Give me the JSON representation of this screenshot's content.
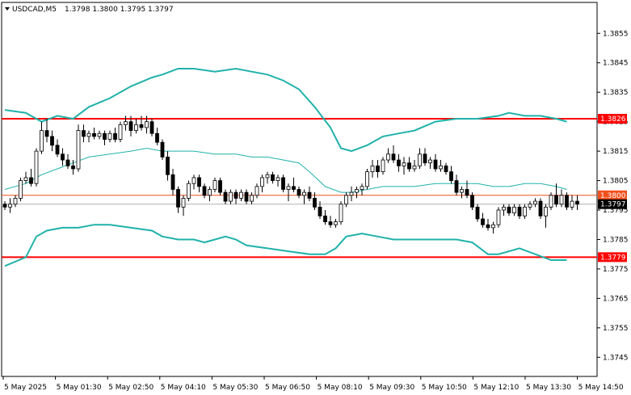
{
  "header": {
    "symbol": "USDCAD,M5",
    "ohlc": "1.3798 1.3800 1.3795 1.3797"
  },
  "chart_data": {
    "type": "candlestick",
    "symbol": "USDCAD",
    "timeframe": "M5",
    "ylim": [
      1.37385,
      1.38655
    ],
    "y_ticks": [
      "1.3855",
      "1.3845",
      "1.3835",
      "1.3825",
      "1.3815",
      "1.3805",
      "1.3795",
      "1.3785",
      "1.3775",
      "1.3765",
      "1.3755",
      "1.3745"
    ],
    "x_ticks": [
      "5 May 2025",
      "5 May 01:30",
      "5 May 02:50",
      "5 May 04:10",
      "5 May 05:30",
      "5 May 06:50",
      "5 May 08:10",
      "5 May 09:30",
      "5 May 10:50",
      "5 May 12:10",
      "5 May 13:30",
      "5 May 14:50"
    ],
    "candles": [
      [
        1.3797,
        1.3798,
        1.3795,
        1.3796
      ],
      [
        1.3796,
        1.3799,
        1.3794,
        1.3797
      ],
      [
        1.3797,
        1.38,
        1.3796,
        1.3799
      ],
      [
        1.3799,
        1.3806,
        1.3798,
        1.3805
      ],
      [
        1.3805,
        1.3808,
        1.3804,
        1.3806
      ],
      [
        1.3806,
        1.3809,
        1.3803,
        1.3804
      ],
      [
        1.3804,
        1.3816,
        1.3803,
        1.3815
      ],
      [
        1.3815,
        1.3825,
        1.3814,
        1.3822
      ],
      [
        1.3822,
        1.3826,
        1.3818,
        1.382
      ],
      [
        1.382,
        1.3822,
        1.3815,
        1.3817
      ],
      [
        1.3817,
        1.3819,
        1.3813,
        1.3814
      ],
      [
        1.3814,
        1.3816,
        1.381,
        1.3812
      ],
      [
        1.3812,
        1.3814,
        1.3809,
        1.381
      ],
      [
        1.381,
        1.3812,
        1.3807,
        1.3809
      ],
      [
        1.3809,
        1.3824,
        1.3808,
        1.3822
      ],
      [
        1.3822,
        1.3824,
        1.3818,
        1.382
      ],
      [
        1.382,
        1.3822,
        1.3818,
        1.3821
      ],
      [
        1.3821,
        1.3823,
        1.3819,
        1.382
      ],
      [
        1.382,
        1.3822,
        1.3819,
        1.3821
      ],
      [
        1.3821,
        1.3822,
        1.3817,
        1.3819
      ],
      [
        1.3819,
        1.3822,
        1.3818,
        1.3821
      ],
      [
        1.3821,
        1.3823,
        1.3818,
        1.3819
      ],
      [
        1.3819,
        1.3825,
        1.3818,
        1.3824
      ],
      [
        1.3824,
        1.3827,
        1.3822,
        1.3825
      ],
      [
        1.3825,
        1.3827,
        1.382,
        1.3822
      ],
      [
        1.3822,
        1.3826,
        1.3821,
        1.3824
      ],
      [
        1.3824,
        1.3827,
        1.3822,
        1.3823
      ],
      [
        1.3823,
        1.3827,
        1.3821,
        1.3825
      ],
      [
        1.3825,
        1.3826,
        1.382,
        1.3821
      ],
      [
        1.3821,
        1.3823,
        1.3817,
        1.3818
      ],
      [
        1.3818,
        1.3819,
        1.3812,
        1.3813
      ],
      [
        1.3813,
        1.3815,
        1.3805,
        1.3807
      ],
      [
        1.3807,
        1.3809,
        1.38,
        1.3802
      ],
      [
        1.3802,
        1.3803,
        1.3794,
        1.3796
      ],
      [
        1.3796,
        1.38,
        1.3793,
        1.3799
      ],
      [
        1.3799,
        1.3805,
        1.3798,
        1.3804
      ],
      [
        1.3804,
        1.3807,
        1.3802,
        1.3806
      ],
      [
        1.3806,
        1.3807,
        1.3801,
        1.3803
      ],
      [
        1.3803,
        1.3804,
        1.3799,
        1.38
      ],
      [
        1.38,
        1.3803,
        1.3798,
        1.3802
      ],
      [
        1.3802,
        1.3806,
        1.3801,
        1.3805
      ],
      [
        1.3805,
        1.3806,
        1.38,
        1.3801
      ],
      [
        1.3801,
        1.3802,
        1.3797,
        1.3798
      ],
      [
        1.3798,
        1.3802,
        1.3797,
        1.3801
      ],
      [
        1.3801,
        1.3802,
        1.3797,
        1.3799
      ],
      [
        1.3799,
        1.3802,
        1.3798,
        1.3801
      ],
      [
        1.3801,
        1.3802,
        1.3797,
        1.3798
      ],
      [
        1.3798,
        1.3801,
        1.3797,
        1.38
      ],
      [
        1.38,
        1.3804,
        1.3799,
        1.3803
      ],
      [
        1.3803,
        1.3807,
        1.3801,
        1.3806
      ],
      [
        1.3806,
        1.3808,
        1.3804,
        1.3807
      ],
      [
        1.3807,
        1.3808,
        1.3804,
        1.3805
      ],
      [
        1.3805,
        1.3807,
        1.3803,
        1.3806
      ],
      [
        1.3806,
        1.3807,
        1.3801,
        1.3802
      ],
      [
        1.3802,
        1.3804,
        1.3798,
        1.3803
      ],
      [
        1.3803,
        1.3806,
        1.3801,
        1.3802
      ],
      [
        1.3802,
        1.3803,
        1.3799,
        1.38
      ],
      [
        1.38,
        1.3802,
        1.3797,
        1.3801
      ],
      [
        1.3801,
        1.3803,
        1.3798,
        1.3799
      ],
      [
        1.3799,
        1.3801,
        1.3795,
        1.3796
      ],
      [
        1.3796,
        1.3798,
        1.3792,
        1.3793
      ],
      [
        1.3793,
        1.3795,
        1.379,
        1.3791
      ],
      [
        1.3791,
        1.3793,
        1.3789,
        1.379
      ],
      [
        1.379,
        1.3792,
        1.3789,
        1.3791
      ],
      [
        1.3791,
        1.3798,
        1.379,
        1.3797
      ],
      [
        1.3797,
        1.3801,
        1.3796,
        1.38
      ],
      [
        1.38,
        1.3803,
        1.3798,
        1.3801
      ],
      [
        1.3801,
        1.3803,
        1.3799,
        1.3802
      ],
      [
        1.3802,
        1.3804,
        1.38,
        1.3803
      ],
      [
        1.3803,
        1.3809,
        1.3802,
        1.3808
      ],
      [
        1.3808,
        1.3812,
        1.3806,
        1.381
      ],
      [
        1.381,
        1.3812,
        1.3806,
        1.3808
      ],
      [
        1.3808,
        1.3813,
        1.3807,
        1.3812
      ],
      [
        1.3812,
        1.3816,
        1.3811,
        1.3814
      ],
      [
        1.3814,
        1.3817,
        1.3811,
        1.3812
      ],
      [
        1.3812,
        1.3814,
        1.3808,
        1.381
      ],
      [
        1.381,
        1.3813,
        1.3807,
        1.3811
      ],
      [
        1.3811,
        1.3813,
        1.3808,
        1.3809
      ],
      [
        1.3809,
        1.3812,
        1.3808,
        1.381
      ],
      [
        1.381,
        1.3816,
        1.3809,
        1.3814
      ],
      [
        1.3814,
        1.3816,
        1.381,
        1.3811
      ],
      [
        1.3811,
        1.3813,
        1.3809,
        1.3812
      ],
      [
        1.3812,
        1.3814,
        1.3808,
        1.3809
      ],
      [
        1.3809,
        1.3812,
        1.3808,
        1.381
      ],
      [
        1.381,
        1.3811,
        1.3807,
        1.3808
      ],
      [
        1.3808,
        1.381,
        1.3804,
        1.3805
      ],
      [
        1.3805,
        1.3807,
        1.38,
        1.3801
      ],
      [
        1.3801,
        1.3803,
        1.3799,
        1.3802
      ],
      [
        1.3802,
        1.3805,
        1.3799,
        1.38
      ],
      [
        1.38,
        1.3801,
        1.3795,
        1.3796
      ],
      [
        1.3796,
        1.3797,
        1.3791,
        1.3792
      ],
      [
        1.3792,
        1.3794,
        1.3789,
        1.379
      ],
      [
        1.379,
        1.3792,
        1.3788,
        1.3789
      ],
      [
        1.3789,
        1.3791,
        1.3787,
        1.379
      ],
      [
        1.379,
        1.3796,
        1.3789,
        1.3795
      ],
      [
        1.3795,
        1.3797,
        1.3793,
        1.3796
      ],
      [
        1.3796,
        1.3797,
        1.3793,
        1.3794
      ],
      [
        1.3794,
        1.3797,
        1.3793,
        1.3796
      ],
      [
        1.3796,
        1.3797,
        1.3792,
        1.3793
      ],
      [
        1.3793,
        1.3797,
        1.3792,
        1.3796
      ],
      [
        1.3796,
        1.3798,
        1.3795,
        1.3797
      ],
      [
        1.3797,
        1.3799,
        1.3796,
        1.3798
      ],
      [
        1.3798,
        1.3799,
        1.3792,
        1.3793
      ],
      [
        1.3793,
        1.3797,
        1.3789,
        1.3796
      ],
      [
        1.3796,
        1.3801,
        1.3795,
        1.38
      ],
      [
        1.38,
        1.3804,
        1.3796,
        1.3797
      ],
      [
        1.3797,
        1.3802,
        1.3796,
        1.38
      ],
      [
        1.38,
        1.3801,
        1.3795,
        1.3796
      ],
      [
        1.3796,
        1.38,
        1.3795,
        1.3798
      ],
      [
        1.3798,
        1.38,
        1.3795,
        1.3797
      ]
    ],
    "series": [
      {
        "color": "#20b2aa",
        "points": [
          [
            0,
            1.3829
          ],
          [
            4,
            1.3828
          ],
          [
            7,
            1.3825
          ],
          [
            10,
            1.3827
          ],
          [
            13,
            1.3826
          ],
          [
            16,
            1.383
          ],
          [
            20,
            1.3833
          ],
          [
            24,
            1.3837
          ],
          [
            28,
            1.384
          ],
          [
            30,
            1.3841
          ],
          [
            33,
            1.3843
          ],
          [
            36,
            1.3843
          ],
          [
            40,
            1.3842
          ],
          [
            44,
            1.3843
          ],
          [
            47,
            1.3842
          ],
          [
            50,
            1.3841
          ],
          [
            53,
            1.3839
          ],
          [
            56,
            1.3836
          ],
          [
            59,
            1.383
          ],
          [
            62,
            1.3823
          ],
          [
            64,
            1.3816
          ],
          [
            66,
            1.3815
          ],
          [
            69,
            1.3817
          ],
          [
            72,
            1.382
          ],
          [
            75,
            1.3821
          ],
          [
            78,
            1.3822
          ],
          [
            82,
            1.3825
          ],
          [
            86,
            1.3826
          ],
          [
            90,
            1.3826
          ],
          [
            94,
            1.3827
          ],
          [
            96,
            1.3828
          ],
          [
            99,
            1.3827
          ],
          [
            102,
            1.3827
          ],
          [
            105,
            1.3826
          ],
          [
            107,
            1.3825
          ]
        ]
      },
      {
        "color": "#20b2aa",
        "points": [
          [
            0,
            1.3802
          ],
          [
            4,
            1.3804
          ],
          [
            7,
            1.3807
          ],
          [
            10,
            1.3809
          ],
          [
            13,
            1.3811
          ],
          [
            16,
            1.3813
          ],
          [
            20,
            1.3814
          ],
          [
            24,
            1.3815
          ],
          [
            27,
            1.3816
          ],
          [
            30,
            1.3815
          ],
          [
            33,
            1.3815
          ],
          [
            36,
            1.3815
          ],
          [
            40,
            1.3814
          ],
          [
            44,
            1.3814
          ],
          [
            47,
            1.3813
          ],
          [
            50,
            1.3813
          ],
          [
            53,
            1.3812
          ],
          [
            56,
            1.3811
          ],
          [
            58,
            1.3808
          ],
          [
            61,
            1.3803
          ],
          [
            64,
            1.3801
          ],
          [
            66,
            1.3801
          ],
          [
            69,
            1.3802
          ],
          [
            72,
            1.3803
          ],
          [
            75,
            1.3803
          ],
          [
            78,
            1.3803
          ],
          [
            82,
            1.3804
          ],
          [
            86,
            1.3804
          ],
          [
            90,
            1.3804
          ],
          [
            93,
            1.3803
          ],
          [
            96,
            1.3803
          ],
          [
            99,
            1.3804
          ],
          [
            102,
            1.3804
          ],
          [
            105,
            1.3803
          ],
          [
            107,
            1.3802
          ]
        ]
      },
      {
        "color": "#20b2aa",
        "points": [
          [
            0,
            1.3776
          ],
          [
            4,
            1.3779
          ],
          [
            6,
            1.3786
          ],
          [
            8,
            1.3788
          ],
          [
            11,
            1.3789
          ],
          [
            14,
            1.3789
          ],
          [
            17,
            1.379
          ],
          [
            20,
            1.379
          ],
          [
            24,
            1.3789
          ],
          [
            28,
            1.3788
          ],
          [
            30,
            1.3786
          ],
          [
            33,
            1.3785
          ],
          [
            36,
            1.3785
          ],
          [
            38,
            1.3784
          ],
          [
            40,
            1.3785
          ],
          [
            42,
            1.3786
          ],
          [
            44,
            1.3785
          ],
          [
            46,
            1.3783
          ],
          [
            50,
            1.3782
          ],
          [
            54,
            1.3781
          ],
          [
            58,
            1.378
          ],
          [
            61,
            1.378
          ],
          [
            63,
            1.3782
          ],
          [
            65,
            1.3786
          ],
          [
            68,
            1.3787
          ],
          [
            71,
            1.3786
          ],
          [
            74,
            1.3785
          ],
          [
            78,
            1.3785
          ],
          [
            82,
            1.3785
          ],
          [
            86,
            1.3785
          ],
          [
            89,
            1.3784
          ],
          [
            92,
            1.378
          ],
          [
            94,
            1.378
          ],
          [
            96,
            1.3781
          ],
          [
            98,
            1.3782
          ],
          [
            101,
            1.378
          ],
          [
            104,
            1.3778
          ],
          [
            107,
            1.3778
          ]
        ]
      }
    ],
    "hlines": [
      {
        "value": 1.3826,
        "label": "1.3826",
        "color": "#ff0000"
      },
      {
        "value": 1.3779,
        "label": "1.3779",
        "color": "#ff0000"
      },
      {
        "value": 1.38,
        "label": "1.3800",
        "color": "#f4511e"
      },
      {
        "value": 1.3797,
        "label": "1.3797",
        "color": "#000000"
      }
    ],
    "grid": false
  }
}
